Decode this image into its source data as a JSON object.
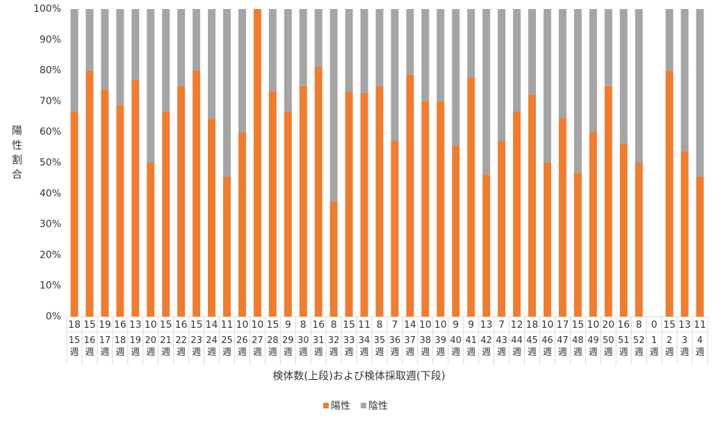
{
  "chart_data": {
    "type": "stacked_bar_100",
    "y_label": "陽性割合",
    "x_label": "検体数(上段)および検体採取週(下段)",
    "categories": [
      "15週",
      "16週",
      "17週",
      "18週",
      "19週",
      "20週",
      "21週",
      "22週",
      "23週",
      "24週",
      "25週",
      "26週",
      "27週",
      "28週",
      "29週",
      "30週",
      "31週",
      "32週",
      "33週",
      "34週",
      "35週",
      "36週",
      "37週",
      "38週",
      "39週",
      "40週",
      "41週",
      "42週",
      "43週",
      "44週",
      "45週",
      "46週",
      "47週",
      "48週",
      "49週",
      "50週",
      "51週",
      "52週",
      "1週",
      "2週",
      "3週",
      "4週"
    ],
    "sample_counts": [
      18,
      15,
      19,
      16,
      13,
      10,
      15,
      16,
      15,
      14,
      11,
      10,
      10,
      15,
      9,
      8,
      16,
      8,
      15,
      11,
      8,
      7,
      14,
      10,
      10,
      9,
      9,
      13,
      7,
      12,
      18,
      10,
      17,
      15,
      10,
      20,
      16,
      8,
      0,
      15,
      13,
      11
    ],
    "series": [
      {
        "name": "陽性",
        "color": "#ed7d31",
        "values": [
          66.7,
          80,
          73.7,
          68.8,
          76.9,
          50,
          66.7,
          75,
          80,
          64.3,
          45.5,
          60,
          100,
          73.3,
          66.7,
          75,
          81.3,
          37.5,
          73.3,
          72.7,
          75,
          57.1,
          78.6,
          70,
          70,
          55.6,
          77.8,
          46.2,
          57.1,
          66.7,
          72.2,
          50,
          64.7,
          46.7,
          60,
          75,
          56.3,
          50,
          null,
          80,
          53.8,
          45.5
        ]
      },
      {
        "name": "陰性",
        "color": "#a5a5a5",
        "values": [
          33.3,
          20,
          26.3,
          31.2,
          23.1,
          50,
          33.3,
          25,
          20,
          35.7,
          54.5,
          40,
          0,
          26.7,
          33.3,
          25,
          18.7,
          62.5,
          26.7,
          27.3,
          25,
          42.9,
          21.4,
          30,
          30,
          44.4,
          22.2,
          53.8,
          42.9,
          33.3,
          27.8,
          50,
          35.3,
          53.3,
          40,
          25,
          43.7,
          50,
          null,
          20,
          46.2,
          54.5
        ]
      }
    ],
    "ylim": [
      0,
      100
    ],
    "yticks": [
      {
        "value": 0,
        "label": "0%"
      },
      {
        "value": 10,
        "label": "10%"
      },
      {
        "value": 20,
        "label": "20%"
      },
      {
        "value": 30,
        "label": "30%"
      },
      {
        "value": 40,
        "label": "40%"
      },
      {
        "value": 50,
        "label": "50%"
      },
      {
        "value": 60,
        "label": "60%"
      },
      {
        "value": 70,
        "label": "70%"
      },
      {
        "value": 80,
        "label": "80%"
      },
      {
        "value": 90,
        "label": "90%"
      },
      {
        "value": 100,
        "label": "100%"
      }
    ],
    "grid": false,
    "legend": "bottom"
  }
}
